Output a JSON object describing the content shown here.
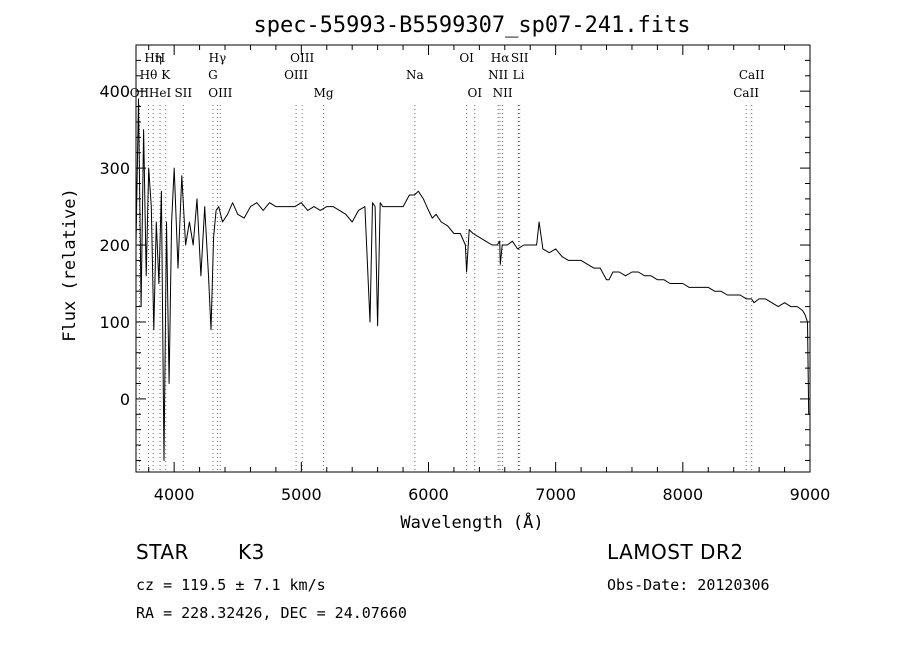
{
  "chart_data": {
    "type": "line",
    "title": "spec-55993-B5599307_sp07-241.fits",
    "xlabel": "Wavelength (Å)",
    "ylabel": "Flux (relative)",
    "xlim": [
      3700,
      9000
    ],
    "ylim": [
      -95,
      460
    ],
    "x_ticks": [
      4000,
      5000,
      6000,
      7000,
      8000,
      9000
    ],
    "y_ticks": [
      0,
      100,
      200,
      300,
      400
    ],
    "grid": false,
    "series": [
      {
        "values_x": [
          3700,
          3720,
          3740,
          3760,
          3780,
          3800,
          3820,
          3840,
          3860,
          3880,
          3900,
          3920,
          3940,
          3960,
          3980,
          4000,
          4030,
          4060,
          4090,
          4120,
          4150,
          4180,
          4210,
          4240,
          4270,
          4290,
          4310,
          4330,
          4350,
          4380,
          4420,
          4460,
          4500,
          4550,
          4600,
          4650,
          4700,
          4750,
          4800,
          4850,
          4900,
          4950,
          5000,
          5050,
          5100,
          5150,
          5200,
          5250,
          5300,
          5350,
          5400,
          5450,
          5500,
          5540,
          5560,
          5580,
          5600,
          5620,
          5640,
          5660,
          5700,
          5750,
          5800,
          5850,
          5890,
          5920,
          5960,
          6000,
          6030,
          6060,
          6100,
          6150,
          6200,
          6250,
          6290,
          6300,
          6320,
          6350,
          6400,
          6450,
          6500,
          6540,
          6560,
          6565,
          6580,
          6620,
          6660,
          6700,
          6750,
          6800,
          6850,
          6870,
          6900,
          6950,
          7000,
          7050,
          7100,
          7150,
          7200,
          7250,
          7300,
          7350,
          7400,
          7420,
          7450,
          7500,
          7550,
          7600,
          7650,
          7700,
          7750,
          7800,
          7850,
          7900,
          7950,
          8000,
          8050,
          8100,
          8150,
          8200,
          8250,
          8300,
          8350,
          8400,
          8450,
          8500,
          8540,
          8560,
          8600,
          8650,
          8700,
          8750,
          8800,
          8850,
          8900,
          8940,
          8960,
          8980,
          8990,
          9000
        ],
        "values_y": [
          200,
          390,
          120,
          350,
          160,
          300,
          250,
          90,
          230,
          150,
          270,
          -80,
          230,
          20,
          230,
          300,
          170,
          290,
          200,
          230,
          200,
          260,
          160,
          250,
          160,
          90,
          210,
          245,
          250,
          230,
          240,
          255,
          240,
          235,
          250,
          255,
          245,
          255,
          250,
          250,
          250,
          250,
          255,
          245,
          250,
          245,
          250,
          250,
          245,
          240,
          230,
          245,
          250,
          100,
          255,
          250,
          95,
          255,
          250,
          250,
          250,
          250,
          250,
          265,
          265,
          270,
          260,
          245,
          235,
          240,
          230,
          225,
          215,
          215,
          200,
          165,
          220,
          215,
          210,
          205,
          200,
          200,
          205,
          175,
          200,
          200,
          205,
          195,
          200,
          200,
          200,
          230,
          195,
          190,
          195,
          185,
          180,
          180,
          180,
          175,
          170,
          170,
          155,
          155,
          165,
          165,
          160,
          165,
          165,
          160,
          160,
          155,
          155,
          150,
          150,
          150,
          145,
          145,
          145,
          145,
          140,
          140,
          135,
          135,
          135,
          130,
          130,
          125,
          130,
          130,
          125,
          120,
          125,
          120,
          120,
          115,
          110,
          100,
          -20,
          -20
        ]
      }
    ],
    "line_markers": [
      {
        "label": "Hη",
        "x": 3835,
        "row": 0
      },
      {
        "label": "H",
        "x": 3889,
        "row": 0
      },
      {
        "label": "Hθ",
        "x": 3798,
        "row": 1
      },
      {
        "label": "K",
        "x": 3934,
        "row": 1
      },
      {
        "label": "OII",
        "x": 3727,
        "row": 2
      },
      {
        "label": "HeI",
        "x": 3889,
        "row": 2
      },
      {
        "label": "SII",
        "x": 4072,
        "row": 2
      },
      {
        "label": "Hγ",
        "x": 4340,
        "row": 0
      },
      {
        "label": "G",
        "x": 4305,
        "row": 1
      },
      {
        "label": "OIII",
        "x": 4363,
        "row": 2
      },
      {
        "label": "OIII",
        "x": 5007,
        "row": 0
      },
      {
        "label": "OIII",
        "x": 4959,
        "row": 1
      },
      {
        "label": "Mg",
        "x": 5175,
        "row": 2
      },
      {
        "label": "Na",
        "x": 5893,
        "row": 1
      },
      {
        "label": "OI",
        "x": 6300,
        "row": 0
      },
      {
        "label": "OI",
        "x": 6364,
        "row": 2
      },
      {
        "label": "Hα",
        "x": 6563,
        "row": 0
      },
      {
        "label": "SII",
        "x": 6717,
        "row": 0
      },
      {
        "label": "NII",
        "x": 6548,
        "row": 1
      },
      {
        "label": "Li",
        "x": 6708,
        "row": 1
      },
      {
        "label": "NII",
        "x": 6583,
        "row": 2
      },
      {
        "label": "CaII",
        "x": 8542,
        "row": 1
      },
      {
        "label": "CaII",
        "x": 8498,
        "row": 2
      }
    ],
    "marker_color": "#d04040"
  },
  "info": {
    "object_class": "STAR",
    "subclass": "K3",
    "survey": "LAMOST DR2",
    "cz": "cz = 119.5 ± 7.1 km/s",
    "obs_date": "Obs-Date: 20120306",
    "coords": "RA = 228.32426, DEC =  24.07660"
  }
}
